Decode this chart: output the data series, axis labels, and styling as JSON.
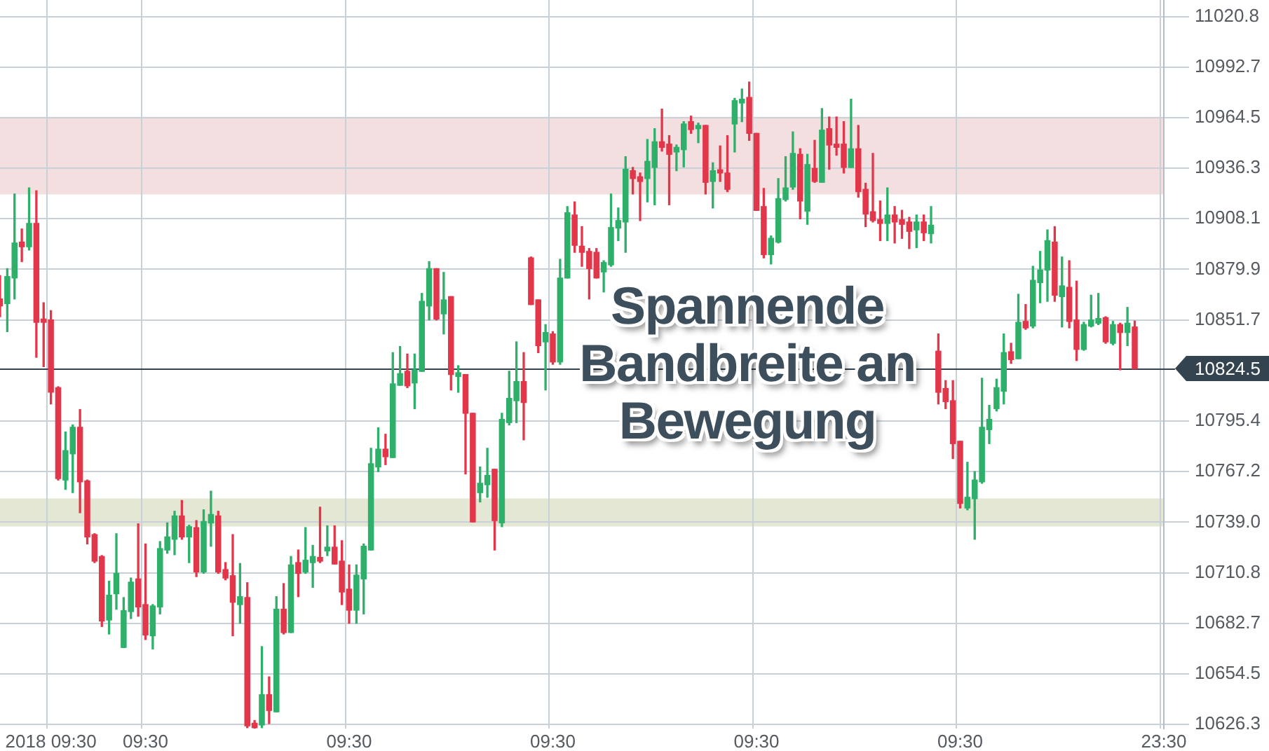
{
  "chart_data": {
    "type": "candlestick",
    "categories": [
      null,
      null,
      null,
      null,
      null,
      null,
      null,
      "2018 09:30",
      null,
      null,
      null,
      null,
      null,
      null,
      null,
      null,
      null,
      null,
      null,
      null,
      "09:30",
      null,
      null,
      null,
      null,
      null,
      null,
      null,
      null,
      null,
      null,
      null,
      null,
      null,
      null,
      null,
      null,
      null,
      null,
      null,
      null,
      null,
      null,
      null,
      null,
      null,
      null,
      null,
      "09:30",
      null,
      null,
      null,
      null,
      null,
      null,
      null,
      null,
      null,
      null,
      null,
      null,
      null,
      null,
      null,
      null,
      null,
      null,
      null,
      null,
      null,
      null,
      null,
      null,
      null,
      null,
      null,
      "09:30",
      null,
      null,
      null,
      null,
      null,
      null,
      null,
      null,
      null,
      null,
      null,
      null,
      null,
      null,
      null,
      null,
      null,
      null,
      null,
      null,
      null,
      null,
      null,
      null,
      null,
      null,
      null,
      "09:30",
      null,
      null,
      null,
      null,
      null,
      null,
      null,
      null,
      null,
      null,
      null,
      null,
      null,
      null,
      null,
      null,
      null,
      null,
      null,
      null,
      null,
      null,
      null,
      null,
      null,
      null,
      null,
      "09:30",
      null,
      null,
      null,
      null,
      null,
      null,
      null,
      null,
      null,
      null,
      null,
      null,
      null,
      null,
      null,
      null,
      null,
      null,
      null,
      null,
      null,
      null,
      null,
      null,
      null,
      null,
      null,
      "23:30"
    ],
    "ohlc": [
      [
        10863.4,
        10876.4,
        10853.5,
        10859.5
      ],
      [
        10860.8,
        10880.3,
        10845.2,
        10875.9
      ],
      [
        10875.1,
        10921.9,
        10863.4,
        10894.6
      ],
      [
        10895.1,
        10902.4,
        10884.2,
        10892.5
      ],
      [
        10892.5,
        10925.3,
        10890.7,
        10905.5
      ],
      [
        10905.5,
        10923.7,
        10830.9,
        10850.4
      ],
      [
        10852.2,
        10861.3,
        10825.7,
        10850.4
      ],
      [
        10851.7,
        10856.9,
        10804.9,
        10811.4
      ],
      [
        10814.0,
        10814.5,
        10762.5,
        10763.3
      ],
      [
        10762.5,
        10789.3,
        10757.3,
        10778.9
      ],
      [
        10777.1,
        10793.2,
        10755.5,
        10791.9
      ],
      [
        10791.9,
        10801.8,
        10744.3,
        10761.5
      ],
      [
        10762.0,
        10762.5,
        10726.9,
        10730.8
      ],
      [
        10732.1,
        10732.6,
        10716.5,
        10717.3
      ],
      [
        10719.9,
        10720.4,
        10680.9,
        10684.0
      ],
      [
        10684.5,
        10706.1,
        10676.7,
        10698.3
      ],
      [
        10699.1,
        10732.6,
        10690.5,
        10710.5
      ],
      [
        10669.2,
        10697.0,
        10669.2,
        10689.7
      ],
      [
        10689.2,
        10707.9,
        10685.3,
        10705.6
      ],
      [
        10707.4,
        10738.1,
        10686.6,
        10691.8
      ],
      [
        10693.1,
        10726.9,
        10673.6,
        10676.2
      ],
      [
        10675.7,
        10693.1,
        10668.4,
        10692.3
      ],
      [
        10691.8,
        10728.2,
        10687.9,
        10724.3
      ],
      [
        10723.5,
        10738.6,
        10721.7,
        10730.8
      ],
      [
        10729.5,
        10745.1,
        10720.9,
        10742.5
      ],
      [
        10742.5,
        10751.1,
        10729.5,
        10730.8
      ],
      [
        10730.8,
        10737.3,
        10716.5,
        10736.5
      ],
      [
        10736.0,
        10739.9,
        10708.7,
        10711.3
      ],
      [
        10711.3,
        10745.9,
        10710.5,
        10739.4
      ],
      [
        10738.6,
        10756.3,
        10725.6,
        10743.3
      ],
      [
        10742.5,
        10745.1,
        10710.5,
        10711.3
      ],
      [
        10712.6,
        10716.5,
        10706.9,
        10707.9
      ],
      [
        10709.2,
        10732.1,
        10675.7,
        10694.4
      ],
      [
        10693.1,
        10716.0,
        10682.7,
        10697.5
      ],
      [
        10697.0,
        10705.3,
        10624.5,
        10625.5
      ],
      [
        10627.0,
        10628.5,
        10624.0,
        10624.5
      ],
      [
        10626.0,
        10669.7,
        10624.5,
        10642.9
      ],
      [
        10642.9,
        10652.8,
        10626.8,
        10634.1
      ],
      [
        10633.3,
        10697.5,
        10633.3,
        10690.5
      ],
      [
        10690.5,
        10704.8,
        10676.7,
        10677.5
      ],
      [
        10677.5,
        10719.9,
        10677.5,
        10715.2
      ],
      [
        10716.5,
        10723.5,
        10697.5,
        10710.5
      ],
      [
        10711.3,
        10736.0,
        10710.5,
        10717.8
      ],
      [
        10716.5,
        10726.1,
        10702.7,
        10719.9
      ],
      [
        10719.4,
        10747.4,
        10716.5,
        10717.3
      ],
      [
        10723.0,
        10737.0,
        10720.4,
        10725.1
      ],
      [
        10725.1,
        10737.0,
        10715.7,
        10715.7
      ],
      [
        10717.3,
        10728.7,
        10693.1,
        10700.1
      ],
      [
        10701.7,
        10715.2,
        10682.7,
        10690.0
      ],
      [
        10690.0,
        10715.2,
        10682.7,
        10709.5
      ],
      [
        10707.4,
        10726.9,
        10687.9,
        10725.6
      ],
      [
        10723.5,
        10780.2,
        10723.5,
        10771.6
      ],
      [
        10769.8,
        10791.6,
        10767.2,
        10779.7
      ],
      [
        10779.7,
        10788.0,
        10771.1,
        10775.5
      ],
      [
        10775.0,
        10833.5,
        10775.0,
        10816.1
      ],
      [
        10815.3,
        10836.9,
        10815.3,
        10821.8
      ],
      [
        10823.1,
        10832.7,
        10814.0,
        10815.0
      ],
      [
        10816.6,
        10832.7,
        10802.3,
        10823.9
      ],
      [
        10823.1,
        10866.5,
        10823.1,
        10862.1
      ],
      [
        10859.5,
        10884.2,
        10851.7,
        10880.3
      ],
      [
        10880.3,
        10880.3,
        10851.7,
        10852.2
      ],
      [
        10855.1,
        10878.2,
        10843.9,
        10862.9
      ],
      [
        10864.7,
        10864.7,
        10812.7,
        10821.3
      ],
      [
        10820.2,
        10826.2,
        10811.4,
        10822.3
      ],
      [
        10821.3,
        10821.3,
        10765.9,
        10799.7
      ],
      [
        10799.7,
        10799.7,
        10739.1,
        10739.1
      ],
      [
        10755.5,
        10769.8,
        10750.3,
        10760.7
      ],
      [
        10759.9,
        10780.2,
        10752.9,
        10765.1
      ],
      [
        10768.5,
        10768.5,
        10723.5,
        10739.9
      ],
      [
        10738.6,
        10799.7,
        10736.5,
        10796.3
      ],
      [
        10794.5,
        10823.1,
        10793.2,
        10808.0
      ],
      [
        10806.7,
        10839.5,
        10794.5,
        10817.4
      ],
      [
        10817.4,
        10833.5,
        10784.9,
        10805.7
      ],
      [
        10886.3,
        10886.8,
        10860.3,
        10860.3
      ],
      [
        10862.9,
        10862.9,
        10833.5,
        10837.4
      ],
      [
        10839.5,
        10849.1,
        10812.7,
        10844.7
      ],
      [
        10843.9,
        10845.2,
        10827.0,
        10828.3
      ],
      [
        10828.3,
        10885.5,
        10827.0,
        10875.1
      ],
      [
        10875.1,
        10914.9,
        10875.1,
        10911.5
      ],
      [
        10910.2,
        10917.5,
        10889.4,
        10893.3
      ],
      [
        10892.8,
        10903.7,
        10881.6,
        10889.4
      ],
      [
        10889.9,
        10891.5,
        10863.4,
        10880.3
      ],
      [
        10889.4,
        10891.5,
        10875.1,
        10875.1
      ],
      [
        10878.5,
        10884.7,
        10867.3,
        10883.7
      ],
      [
        10882.4,
        10921.9,
        10881.6,
        10903.2
      ],
      [
        10902.9,
        10914.1,
        10895.9,
        10907.1
      ],
      [
        10906.3,
        10942.7,
        10889.4,
        10935.7
      ],
      [
        10934.9,
        10936.7,
        10921.9,
        10930.5
      ],
      [
        10931.5,
        10933.6,
        10907.1,
        10928.9
      ],
      [
        10930.5,
        10952.3,
        10917.5,
        10940.1
      ],
      [
        10936.7,
        10958.3,
        10915.9,
        10951.0
      ],
      [
        10951.0,
        10969.2,
        10945.8,
        10947.9
      ],
      [
        10949.7,
        10954.4,
        10915.9,
        10944.0
      ],
      [
        10945.3,
        10949.2,
        10934.9,
        10947.9
      ],
      [
        10946.6,
        10962.2,
        10937.0,
        10960.9
      ],
      [
        10962.2,
        10965.3,
        10955.7,
        10957.8
      ],
      [
        10958.3,
        10961.4,
        10950.5,
        10960.1
      ],
      [
        10960.1,
        10960.1,
        10921.9,
        10928.4
      ],
      [
        10928.9,
        10939.3,
        10914.1,
        10934.9
      ],
      [
        10935.4,
        10948.7,
        10928.9,
        10933.6
      ],
      [
        10933.6,
        10954.4,
        10923.2,
        10924.5
      ],
      [
        10960.9,
        10975.2,
        10945.3,
        10973.9
      ],
      [
        10972.6,
        10980.4,
        10962.2,
        10974.7
      ],
      [
        10975.7,
        10984.3,
        10951.8,
        10955.7
      ],
      [
        10955.7,
        10955.7,
        10912.8,
        10912.8
      ],
      [
        10914.9,
        10925.0,
        10886.3,
        10888.1
      ],
      [
        10888.1,
        10898.5,
        10882.9,
        10897.2
      ],
      [
        10895.1,
        10930.5,
        10894.6,
        10919.3
      ],
      [
        10918.8,
        10942.7,
        10918.0,
        10925.3
      ],
      [
        10925.8,
        10956.5,
        10924.5,
        10944.5
      ],
      [
        10944.0,
        10947.1,
        10908.1,
        10918.0
      ],
      [
        10912.3,
        10944.0,
        10905.0,
        10938.3
      ],
      [
        10936.2,
        10951.8,
        10928.4,
        10928.9
      ],
      [
        10928.4,
        10969.5,
        10928.4,
        10957.5
      ],
      [
        10958.3,
        10964.8,
        10935.7,
        10949.2
      ],
      [
        10949.7,
        10964.8,
        10943.5,
        10947.9
      ],
      [
        10949.7,
        10962.2,
        10933.6,
        10936.7
      ],
      [
        10936.7,
        10974.7,
        10936.7,
        10947.1
      ],
      [
        10947.1,
        10960.1,
        10920.1,
        10923.2
      ],
      [
        10924.5,
        10927.9,
        10903.7,
        10910.7
      ],
      [
        10912.0,
        10944.5,
        10906.3,
        10907.1
      ],
      [
        10907.6,
        10918.0,
        10895.9,
        10905.5
      ],
      [
        10905.5,
        10925.3,
        10895.9,
        10910.2
      ],
      [
        10910.2,
        10914.9,
        10894.6,
        10906.3
      ],
      [
        10907.6,
        10912.8,
        10897.2,
        10905.0
      ],
      [
        10906.3,
        10908.9,
        10891.5,
        10901.1
      ],
      [
        10901.9,
        10910.2,
        10892.0,
        10906.3
      ],
      [
        10906.3,
        10910.2,
        10895.9,
        10900.3
      ],
      [
        10899.8,
        10914.9,
        10894.6,
        10904.5
      ],
      [
        10834.3,
        10843.9,
        10804.9,
        10811.4
      ],
      [
        10813.5,
        10817.9,
        10802.3,
        10806.2
      ],
      [
        10806.7,
        10817.9,
        10774.5,
        10782.8
      ],
      [
        10784.1,
        10784.1,
        10746.9,
        10749.5
      ],
      [
        10746.9,
        10772.4,
        10745.9,
        10752.9
      ],
      [
        10752.1,
        10767.2,
        10729.5,
        10762.5
      ],
      [
        10761.5,
        10819.2,
        10760.7,
        10791.9
      ],
      [
        10790.6,
        10804.1,
        10782.8,
        10796.3
      ],
      [
        10802.3,
        10818.7,
        10801.0,
        10814.0
      ],
      [
        10812.0,
        10843.9,
        10804.9,
        10833.5
      ],
      [
        10834.0,
        10838.7,
        10827.5,
        10829.6
      ],
      [
        10830.1,
        10866.0,
        10830.1,
        10850.4
      ],
      [
        10850.9,
        10860.3,
        10846.5,
        10847.3
      ],
      [
        10848.3,
        10881.6,
        10847.3,
        10873.8
      ],
      [
        10872.5,
        10889.9,
        10861.3,
        10879.5
      ],
      [
        10879.5,
        10901.9,
        10862.1,
        10895.9
      ],
      [
        10895.1,
        10903.7,
        10862.1,
        10865.5
      ],
      [
        10864.7,
        10886.8,
        10847.8,
        10870.7
      ],
      [
        10869.9,
        10884.7,
        10847.3,
        10850.9
      ],
      [
        10851.7,
        10873.3,
        10829.1,
        10835.3
      ],
      [
        10835.3,
        10850.4,
        10834.8,
        10849.1
      ],
      [
        10848.3,
        10865.5,
        10847.8,
        10851.7
      ],
      [
        10849.9,
        10866.5,
        10849.1,
        10852.5
      ],
      [
        10853.0,
        10853.5,
        10838.7,
        10839.5
      ],
      [
        10838.7,
        10850.9,
        10837.9,
        10849.1
      ],
      [
        10849.1,
        10849.9,
        10823.9,
        10844.7
      ],
      [
        10844.7,
        10858.7,
        10837.4,
        10849.9
      ],
      [
        10847.8,
        10851.1,
        10824.5,
        10824.5
      ],
      null,
      null,
      null,
      null
    ],
    "colors": [
      "#e2374a",
      "#2eb06a",
      "#2eb06a",
      "#e2374a",
      "#2eb06a",
      "#e2374a",
      "#e2374a",
      "#e2374a",
      "#e2374a",
      "#2eb06a",
      "#2eb06a",
      "#e2374a",
      "#e2374a",
      "#e2374a",
      "#e2374a",
      "#2eb06a",
      "#2eb06a",
      "#2eb06a",
      "#2eb06a",
      "#e2374a",
      "#e2374a",
      "#2eb06a",
      "#2eb06a",
      "#2eb06a",
      "#2eb06a",
      "#e2374a",
      "#2eb06a",
      "#e2374a",
      "#2eb06a",
      "#2eb06a",
      "#e2374a",
      "#e2374a",
      "#e2374a",
      "#2eb06a",
      "#e2374a",
      "#e2374a",
      "#2eb06a",
      "#e2374a",
      "#2eb06a",
      "#e2374a",
      "#2eb06a",
      "#e2374a",
      "#2eb06a",
      "#2eb06a",
      "#e2374a",
      "#2eb06a",
      "#e2374a",
      "#e2374a",
      "#e2374a",
      "#2eb06a",
      "#2eb06a",
      "#2eb06a",
      "#2eb06a",
      "#e2374a",
      "#2eb06a",
      "#2eb06a",
      "#e2374a",
      "#2eb06a",
      "#2eb06a",
      "#2eb06a",
      "#e2374a",
      "#2eb06a",
      "#e2374a",
      "#2eb06a",
      "#e2374a",
      "#e2374a",
      "#2eb06a",
      "#2eb06a",
      "#e2374a",
      "#2eb06a",
      "#2eb06a",
      "#2eb06a",
      "#e2374a",
      "#e2374a",
      "#e2374a",
      "#2eb06a",
      "#e2374a",
      "#2eb06a",
      "#2eb06a",
      "#e2374a",
      "#e2374a",
      "#e2374a",
      "#e2374a",
      "#2eb06a",
      "#2eb06a",
      "#2eb06a",
      "#2eb06a",
      "#e2374a",
      "#e2374a",
      "#2eb06a",
      "#2eb06a",
      "#e2374a",
      "#e2374a",
      "#2eb06a",
      "#2eb06a",
      "#e2374a",
      "#2eb06a",
      "#e2374a",
      "#2eb06a",
      "#e2374a",
      "#e2374a",
      "#2eb06a",
      "#2eb06a",
      "#e2374a",
      "#e2374a",
      "#e2374a",
      "#2eb06a",
      "#2eb06a",
      "#2eb06a",
      "#2eb06a",
      "#e2374a",
      "#2eb06a",
      "#e2374a",
      "#2eb06a",
      "#e2374a",
      "#e2374a",
      "#e2374a",
      "#2eb06a",
      "#e2374a",
      "#e2374a",
      "#e2374a",
      "#e2374a",
      "#2eb06a",
      "#e2374a",
      "#e2374a",
      "#e2374a",
      "#2eb06a",
      "#e2374a",
      "#2eb06a",
      "#e2374a",
      "#e2374a",
      "#e2374a",
      "#e2374a",
      "#2eb06a",
      "#2eb06a",
      "#2eb06a",
      "#2eb06a",
      "#2eb06a",
      "#2eb06a",
      "#e2374a",
      "#2eb06a",
      "#e2374a",
      "#2eb06a",
      "#2eb06a",
      "#2eb06a",
      "#e2374a",
      "#2eb06a",
      "#e2374a",
      "#e2374a",
      "#2eb06a",
      "#2eb06a",
      "#2eb06a",
      "#e2374a",
      "#2eb06a",
      "#e2374a",
      "#2eb06a",
      "#e2374a",
      null,
      null,
      null,
      null
    ],
    "ylim": [
      10624,
      11030
    ],
    "yticks": [
      10626.3,
      10654.5,
      10682.7,
      10710.8,
      {
        "value": 10739,
        "label": "10739.0"
      },
      10767.2,
      10795.4,
      10851.7,
      10879.9,
      10908.1,
      10936.3,
      10964.5,
      10992.7,
      11020.8
    ],
    "grid": true,
    "ref_lines": [
      {
        "axis": "y",
        "value": 10824.5,
        "label": "10824.5",
        "color": "#33434f"
      }
    ],
    "bands": [
      {
        "axis": "y",
        "from": 10921.7,
        "to": 10964.9,
        "color": "#f3dfdf"
      },
      {
        "axis": "y",
        "from": 10736.6,
        "to": 10752.2,
        "color": "#e3e7d3"
      }
    ],
    "annotations": [
      "Spannende Bandbreite an Bewegung"
    ]
  }
}
